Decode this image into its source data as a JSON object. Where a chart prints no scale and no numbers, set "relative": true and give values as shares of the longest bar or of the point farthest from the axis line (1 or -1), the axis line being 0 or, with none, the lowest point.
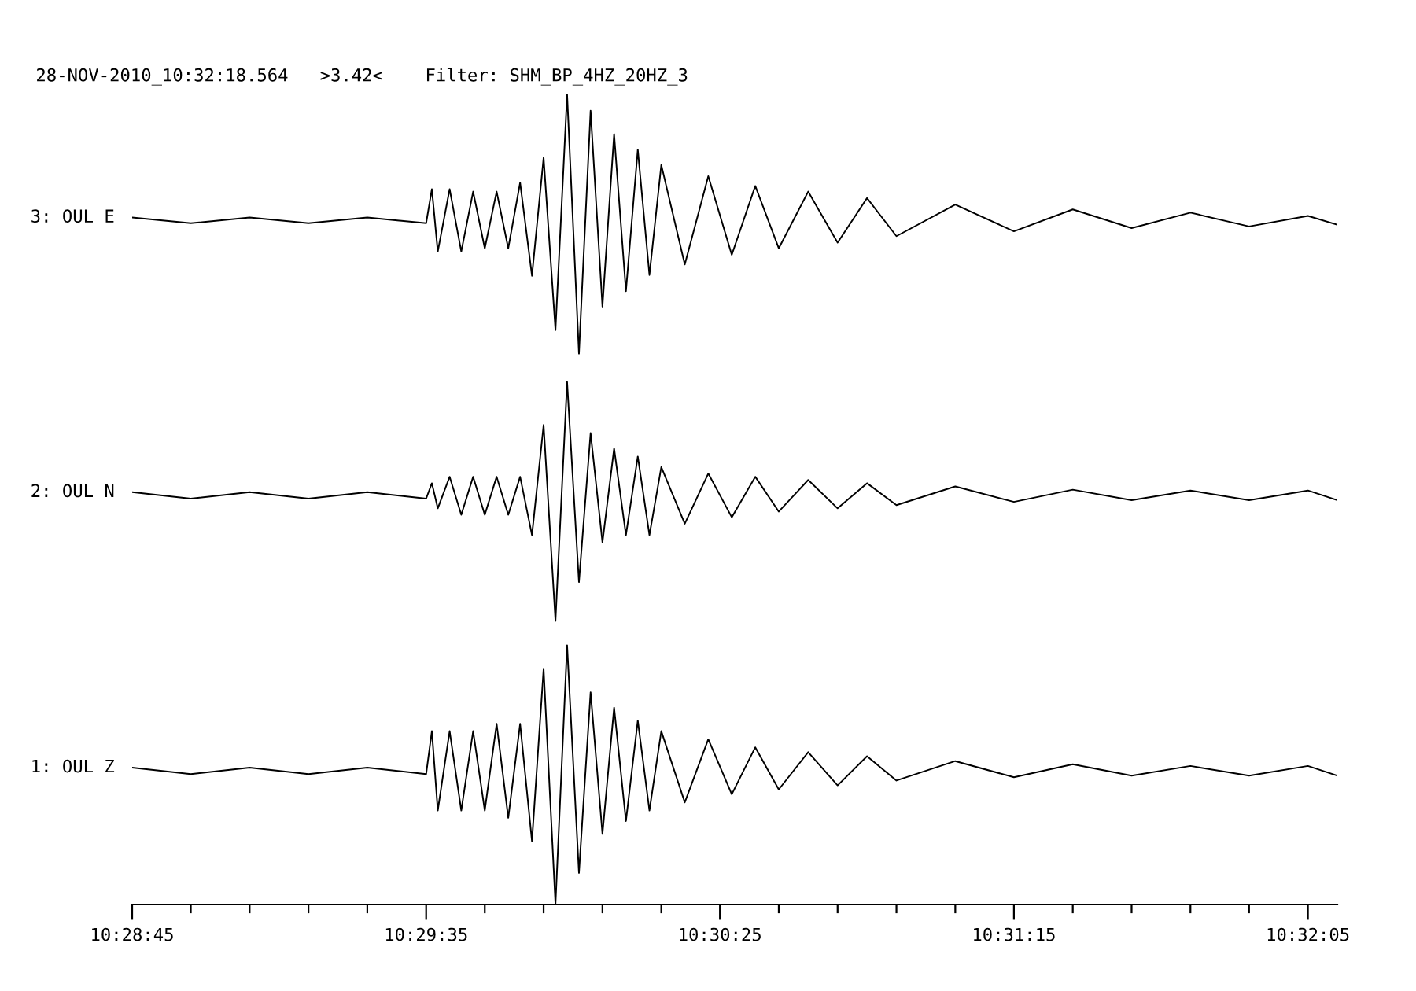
{
  "chart_data": {
    "type": "line",
    "title": "28-NOV-2010_10:32:18.564   >3.42<    Filter: SHM_BP_4HZ_20HZ_3",
    "relative": true,
    "tick_labels": "x",
    "xlim": [
      10.47917,
      10.53611
    ],
    "xticks": [
      {
        "value": 10.47917,
        "label": "10:28:45"
      },
      {
        "value": 10.48194,
        "label": null
      },
      {
        "value": 10.48472,
        "label": null
      },
      {
        "value": 10.4875,
        "label": null
      },
      {
        "value": 10.49028,
        "label": null
      },
      {
        "value": 10.49306,
        "label": "10:29:35"
      },
      {
        "value": 10.49583,
        "label": null
      },
      {
        "value": 10.49861,
        "label": null
      },
      {
        "value": 10.50139,
        "label": null
      },
      {
        "value": 10.50417,
        "label": null
      },
      {
        "value": 10.50694,
        "label": "10:30:25"
      },
      {
        "value": 10.50972,
        "label": null
      },
      {
        "value": 10.5125,
        "label": null
      },
      {
        "value": 10.51528,
        "label": null
      },
      {
        "value": 10.51806,
        "label": null
      },
      {
        "value": 10.52083,
        "label": "10:31:15"
      },
      {
        "value": 10.52361,
        "label": null
      },
      {
        "value": 10.52639,
        "label": null
      },
      {
        "value": 10.52917,
        "label": null
      },
      {
        "value": 10.53194,
        "label": null
      },
      {
        "value": 10.53472,
        "label": "10:32:05"
      }
    ],
    "x": [
      10.47917,
      10.48194,
      10.48472,
      10.4875,
      10.49028,
      10.49306,
      10.49333,
      10.49361,
      10.49417,
      10.49472,
      10.49528,
      10.49583,
      10.49639,
      10.49694,
      10.4975,
      10.49806,
      10.49861,
      10.49917,
      10.49972,
      10.50028,
      10.50083,
      10.50139,
      10.50194,
      10.5025,
      10.50306,
      10.50361,
      10.50417,
      10.50528,
      10.50639,
      10.5075,
      10.50861,
      10.50972,
      10.51111,
      10.5125,
      10.51389,
      10.51528,
      10.51806,
      10.52083,
      10.52361,
      10.52639,
      10.52917,
      10.53194,
      10.53472,
      10.53611
    ],
    "series": [
      {
        "name": "3: OUL E",
        "color": "#000000",
        "values": [
          0.848,
          0.841,
          0.848,
          0.841,
          0.848,
          0.841,
          0.883,
          0.806,
          0.883,
          0.806,
          0.88,
          0.81,
          0.88,
          0.81,
          0.891,
          0.776,
          0.922,
          0.709,
          1,
          0.68,
          0.98,
          0.738,
          0.951,
          0.757,
          0.932,
          0.777,
          0.913,
          0.79,
          0.899,
          0.802,
          0.887,
          0.81,
          0.88,
          0.817,
          0.872,
          0.825,
          0.864,
          0.831,
          0.858,
          0.835,
          0.854,
          0.837,
          0.85,
          0.839
        ]
      },
      {
        "name": "2: OUL N",
        "color": "#000000",
        "values": [
          0.509,
          0.501,
          0.509,
          0.501,
          0.509,
          0.501,
          0.52,
          0.489,
          0.528,
          0.481,
          0.528,
          0.481,
          0.528,
          0.481,
          0.528,
          0.456,
          0.592,
          0.35,
          0.645,
          0.398,
          0.582,
          0.447,
          0.563,
          0.456,
          0.553,
          0.456,
          0.54,
          0.47,
          0.532,
          0.478,
          0.528,
          0.485,
          0.524,
          0.489,
          0.52,
          0.493,
          0.516,
          0.497,
          0.512,
          0.499,
          0.511,
          0.499,
          0.511,
          0.499
        ]
      },
      {
        "name": "1: OUL Z",
        "color": "#000000",
        "values": [
          0.169,
          0.161,
          0.169,
          0.161,
          0.169,
          0.161,
          0.214,
          0.116,
          0.214,
          0.116,
          0.214,
          0.116,
          0.223,
          0.107,
          0.223,
          0.078,
          0.291,
          0,
          0.32,
          0.039,
          0.262,
          0.087,
          0.243,
          0.103,
          0.227,
          0.116,
          0.214,
          0.126,
          0.204,
          0.136,
          0.194,
          0.142,
          0.188,
          0.147,
          0.183,
          0.153,
          0.177,
          0.157,
          0.173,
          0.159,
          0.171,
          0.159,
          0.171,
          0.159
        ]
      }
    ]
  }
}
